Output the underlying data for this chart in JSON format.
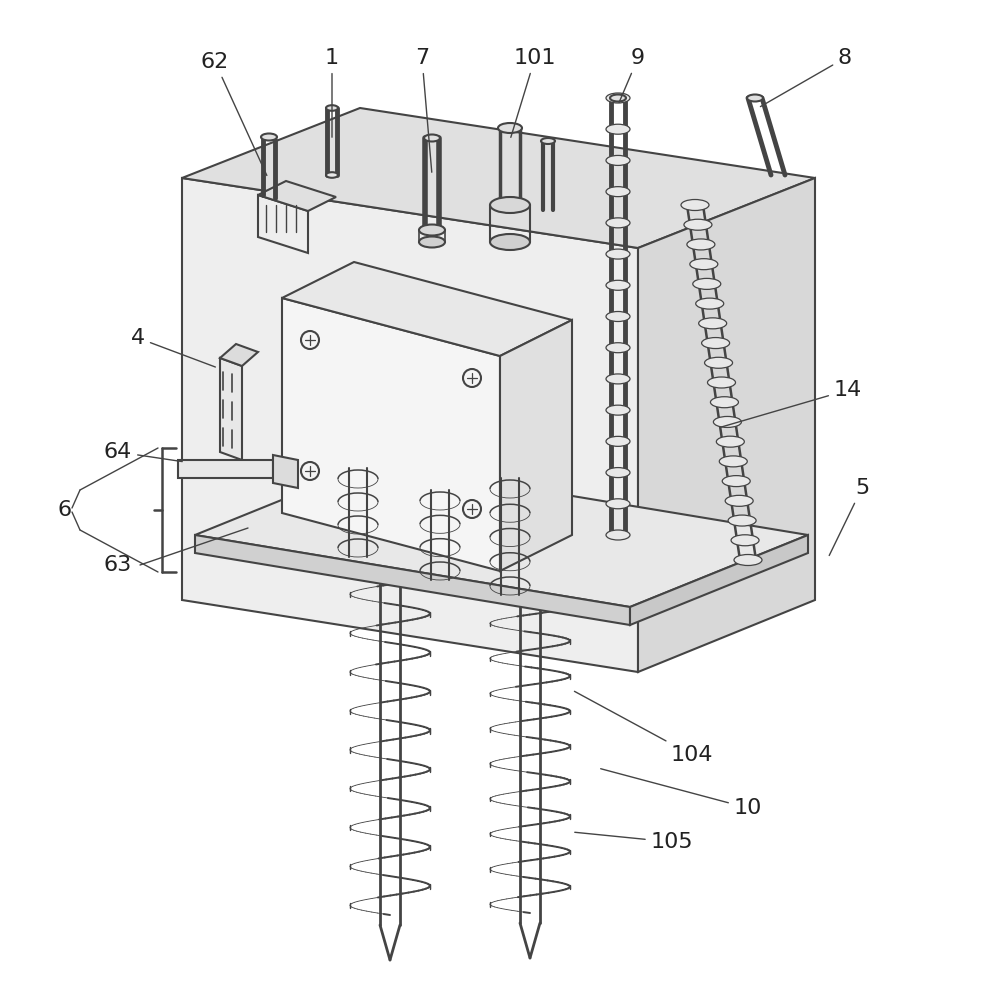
{
  "background_color": "#ffffff",
  "line_color": "#444444",
  "line_width": 1.5,
  "label_fontsize": 16,
  "labels_info": [
    [
      "62",
      215,
      62,
      268,
      178
    ],
    [
      "1",
      332,
      58,
      332,
      140
    ],
    [
      "7",
      422,
      58,
      432,
      175
    ],
    [
      "101",
      535,
      58,
      510,
      140
    ],
    [
      "9",
      638,
      58,
      618,
      105
    ],
    [
      "8",
      845,
      58,
      758,
      108
    ],
    [
      "4",
      138,
      338,
      218,
      368
    ],
    [
      "64",
      118,
      452,
      185,
      462
    ],
    [
      "14",
      848,
      390,
      718,
      428
    ],
    [
      "5",
      862,
      488,
      828,
      558
    ],
    [
      "104",
      692,
      755,
      572,
      690
    ],
    [
      "10",
      748,
      808,
      598,
      768
    ],
    [
      "105",
      672,
      842,
      572,
      832
    ]
  ]
}
